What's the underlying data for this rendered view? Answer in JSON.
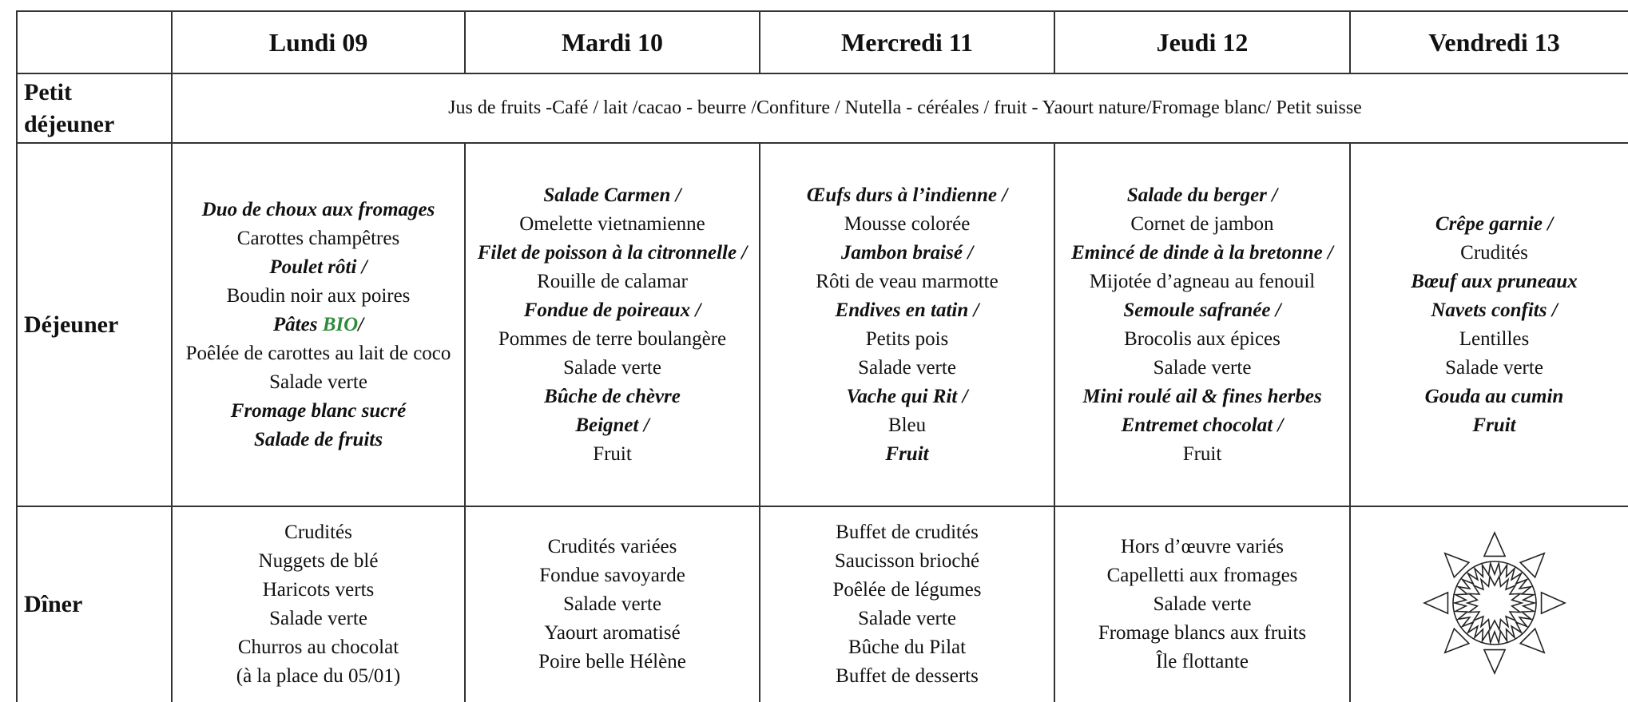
{
  "header": {
    "days": [
      "Lundi 09",
      "Mardi 10",
      "Mercredi 11",
      "Jeudi 12",
      "Vendredi 13"
    ]
  },
  "breakfast": {
    "label": "Petit déjeuner",
    "text": "Jus de fruits -Café / lait /cacao - beurre /Confiture / Nutella - céréales / fruit - Yaourt nature/Fromage blanc/ Petit suisse"
  },
  "lunch": {
    "label": "Déjeuner",
    "cells": [
      [
        {
          "text": "Duo de choux aux fromages",
          "bold": true
        },
        "Carottes champêtres",
        {
          "text": "Poulet rôti /",
          "bold": true
        },
        "Boudin noir aux poires",
        {
          "text": "Pâtes",
          "bold": true,
          "tag": "BIO",
          "tag_color": "#2e8b3c",
          "tail": "/"
        },
        "Poêlée de carottes au lait de coco",
        "Salade verte",
        {
          "text": "Fromage blanc sucré",
          "bold": true
        },
        {
          "text": "Salade de fruits",
          "bold": true
        }
      ],
      [
        {
          "text": "Salade Carmen /",
          "bold": true
        },
        "Omelette vietnamienne",
        {
          "text": "Filet de poisson à la citronnelle /",
          "bold": true
        },
        "Rouille de calamar",
        {
          "text": "Fondue de poireaux /",
          "bold": true
        },
        "Pommes de terre boulangère",
        "Salade verte",
        {
          "text": "Bûche de chèvre",
          "bold": true
        },
        {
          "text": "Beignet /",
          "bold": true
        },
        "Fruit"
      ],
      [
        {
          "text": "Œufs durs à l’indienne /",
          "bold": true
        },
        "Mousse colorée",
        {
          "text": "Jambon braisé /",
          "bold": true
        },
        "Rôti de veau marmotte",
        {
          "text": "Endives en tatin /",
          "bold": true
        },
        "Petits pois",
        "Salade verte",
        {
          "text": "Vache qui Rit /",
          "bold": true
        },
        "Bleu",
        {
          "text": "Fruit",
          "bold": true
        }
      ],
      [
        {
          "text": "Salade du berger /",
          "bold": true
        },
        "Cornet de jambon",
        {
          "text": "Emincé de dinde à la bretonne /",
          "bold": true
        },
        "Mijotée d’agneau au fenouil",
        {
          "text": "Semoule safranée /",
          "bold": true
        },
        "Brocolis aux épices",
        "Salade verte",
        {
          "text": "Mini roulé ail & fines herbes",
          "bold": true
        },
        {
          "text": "Entremet chocolat /",
          "bold": true
        },
        "Fruit"
      ],
      [
        {
          "text": "Crêpe garnie /",
          "bold": true
        },
        "Crudités",
        {
          "text": "Bœuf aux pruneaux",
          "bold": true
        },
        {
          "text": "Navets confits /",
          "bold": true
        },
        "Lentilles",
        "Salade verte",
        {
          "text": "Gouda au cumin",
          "bold": true
        },
        {
          "text": "Fruit",
          "bold": true
        }
      ]
    ]
  },
  "dinner": {
    "label": "Dîner",
    "cells": [
      [
        "Crudités",
        "Nuggets de blé",
        "Haricots verts",
        "Salade verte",
        "Churros au chocolat",
        "(à la place du 05/01)"
      ],
      [
        "Crudités variées",
        "Fondue savoyarde",
        "Salade verte",
        "Yaourt aromatisé",
        "Poire belle Hélène"
      ],
      [
        "Buffet de  crudités",
        "Saucisson brioché",
        "Poêlée de légumes",
        "Salade verte",
        "Bûche du Pilat",
        "Buffet de desserts"
      ],
      [
        "Hors d’œuvre variés",
        "Capelletti aux fromages",
        "Salade verte",
        "Fromage blancs aux fruits",
        "Île flottante"
      ],
      []
    ]
  }
}
